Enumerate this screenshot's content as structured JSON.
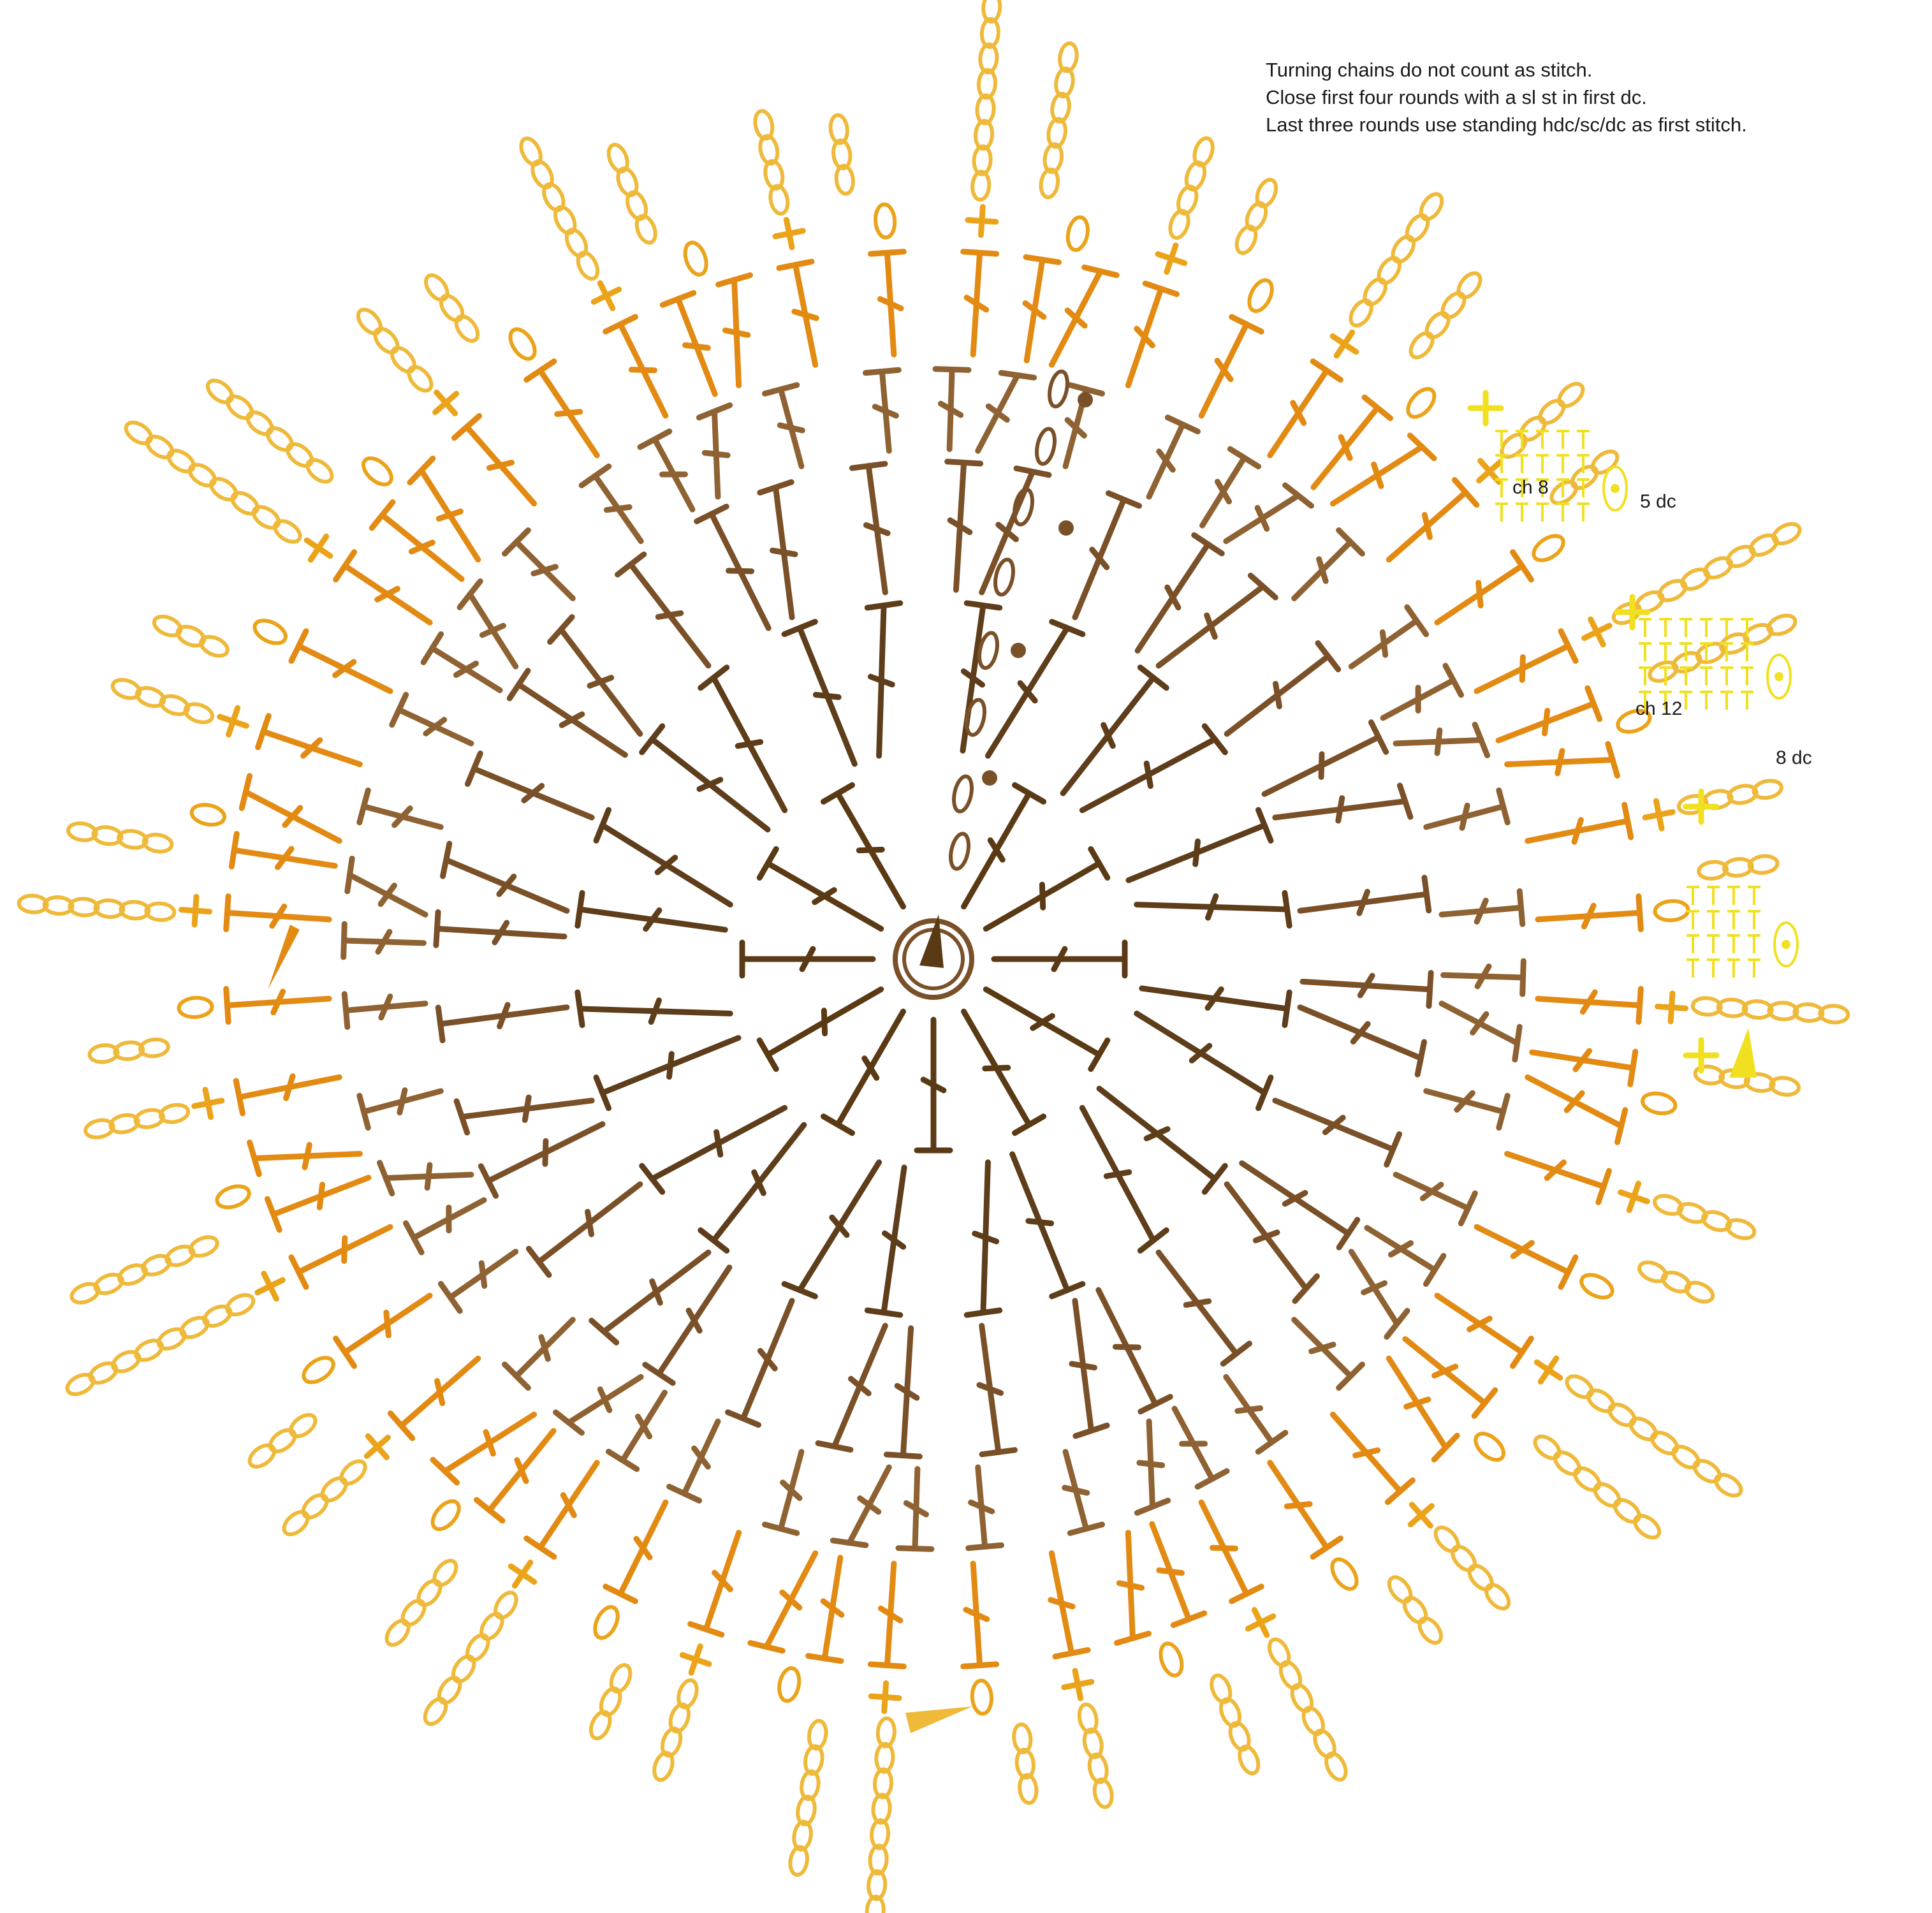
{
  "notes": {
    "line1": "Turning chains do not count as stitch.",
    "line2": "Close first four rounds with a sl st in first dc.",
    "line3": "Last three rounds use standing hdc/sc/dc as first stitch."
  },
  "labels": {
    "ch8": "ch 8",
    "dc5": "5 dc",
    "ch12": "ch 12",
    "dc8": "8 dc"
  },
  "colors": {
    "round1": "#5a3a14",
    "round2": "#5e3d1a",
    "round3": "#7a5028",
    "round4": "#8e6232",
    "round5": "#e28a12",
    "round6": "#eba319",
    "round7": "#efb93a",
    "detail": "#f0e020",
    "start_marker": "#5a3a14"
  },
  "legend_icons": [
    "magic-ring-icon",
    "double-crochet-icon",
    "chain-icon",
    "single-crochet-icon",
    "slip-stitch-icon",
    "start-arrow-icon"
  ]
}
